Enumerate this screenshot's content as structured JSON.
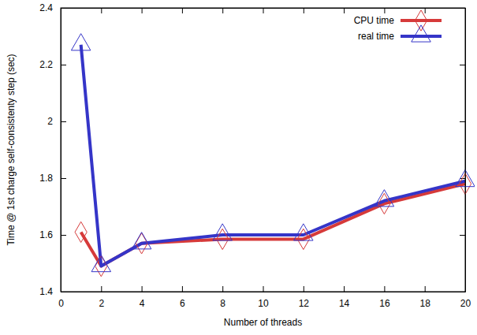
{
  "chart_data": {
    "type": "line",
    "x_label": "Number of threads",
    "y_label": "Time @ 1st charge self-consistenty step (sec)",
    "x": [
      1,
      2,
      4,
      8,
      12,
      16,
      20
    ],
    "series": [
      {
        "name": "CPU time",
        "color": "#d63a3a",
        "marker": "diamond",
        "values": [
          1.61,
          1.49,
          1.57,
          1.585,
          1.585,
          1.71,
          1.78
        ]
      },
      {
        "name": "real time",
        "color": "#3535c8",
        "marker": "triangle",
        "values": [
          2.27,
          1.49,
          1.57,
          1.6,
          1.6,
          1.72,
          1.79
        ]
      }
    ],
    "xlim": [
      0,
      20
    ],
    "xticks": [
      0,
      2,
      4,
      6,
      8,
      10,
      12,
      14,
      16,
      18,
      20
    ],
    "ylim": [
      1.4,
      2.4
    ],
    "yticks": [
      1.4,
      1.6,
      1.8,
      2,
      2.2,
      2.4
    ],
    "grid": false,
    "legend": "upper right"
  }
}
